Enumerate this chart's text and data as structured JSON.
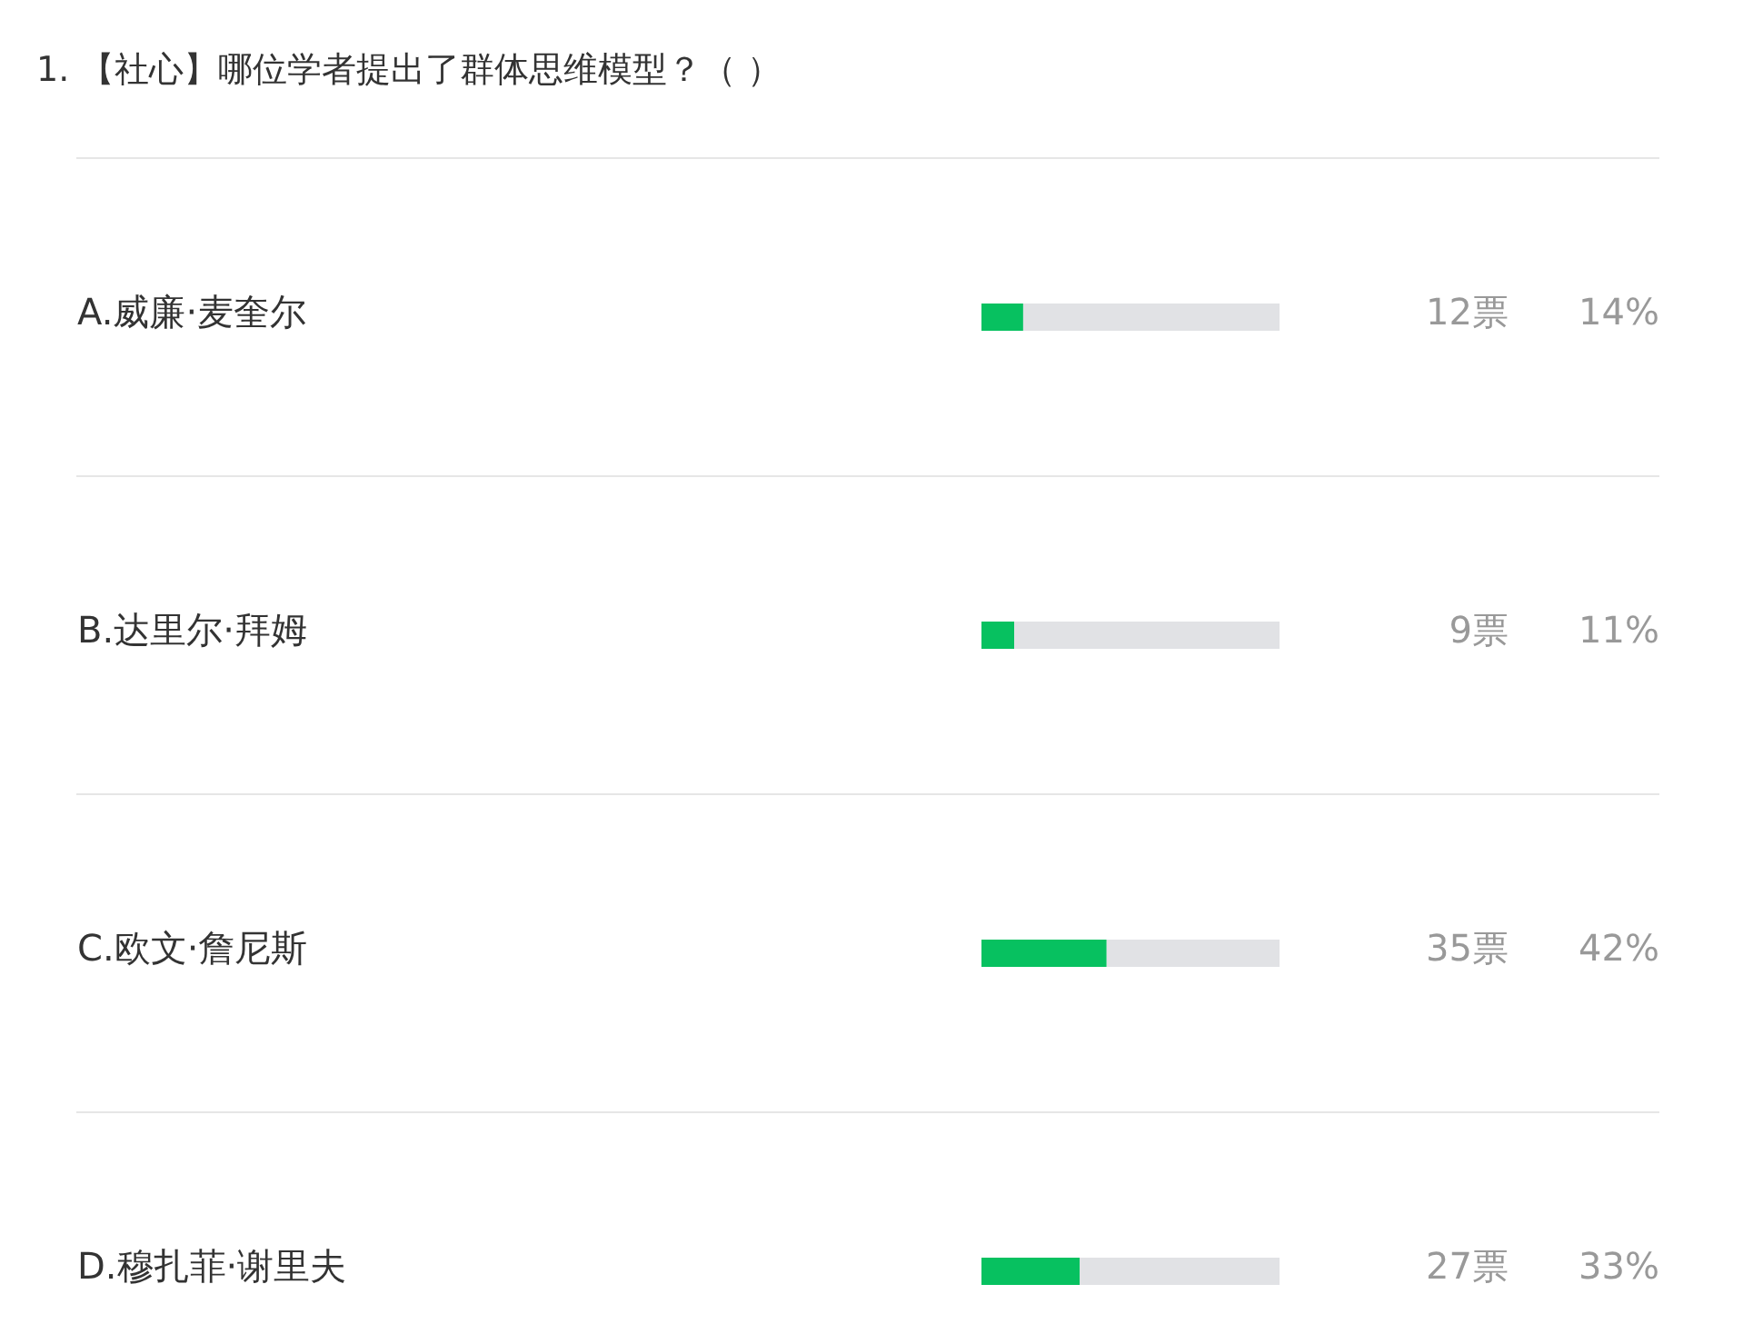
{
  "chart_data": {
    "type": "bar",
    "orientation": "horizontal",
    "stacked": true,
    "title": "1. 【社心】哪位学者提出了群体思维模型？（ ）",
    "categories": [
      "A.威廉·麦奎尔",
      "B.达里尔·拜姆",
      "C.欧文·詹尼斯",
      "D.穆扎菲·谢里夫"
    ],
    "series": [
      {
        "color": "#07c160",
        "values": [
          14,
          11,
          42,
          33
        ],
        "value_labels": [
          "14%",
          "11%",
          "42%",
          "33%"
        ]
      },
      {
        "color": "#e1e2e5",
        "values": [
          86,
          89,
          58,
          67
        ]
      }
    ],
    "tick_labels": "y",
    "grid": "y",
    "annotations": [
      "12票",
      "9票",
      "35票",
      "27票"
    ]
  }
}
